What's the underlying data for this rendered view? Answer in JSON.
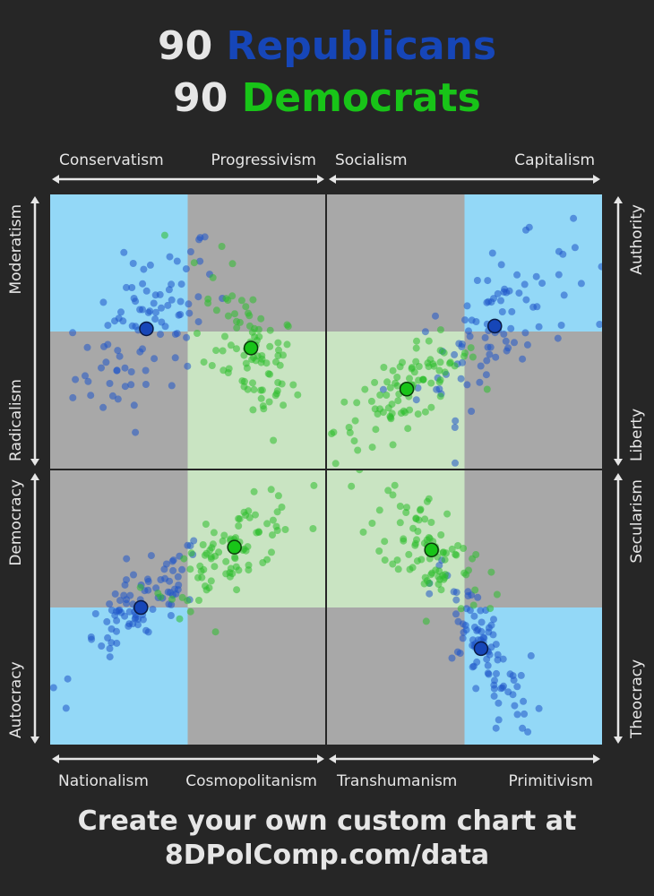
{
  "title": {
    "republicans_count": "90",
    "republicans_label": "Republicans",
    "democrats_count": "90",
    "democrats_label": "Democrats"
  },
  "footer": {
    "line1": "Create your own custom chart at",
    "line2": "8DPolComp.com/data"
  },
  "colors": {
    "background": "#262626",
    "republican": "#1646b8",
    "democrat": "#18c418",
    "republican_zone": "#93d8f7",
    "democrat_zone": "#c9e4c2",
    "neutral_zone": "#a8a8a8",
    "axis": "#e6e6e6"
  },
  "chart_data": [
    {
      "type": "scatter",
      "panel": "top-left",
      "x_axis": {
        "left": "Conservatism",
        "right": "Progressivism",
        "range": [
          0,
          100
        ]
      },
      "y_axis": {
        "top": "Moderatism",
        "bottom": "Radicalism",
        "range": [
          0,
          100
        ]
      },
      "republican_mean": [
        35,
        51
      ],
      "democrat_mean": [
        73,
        44
      ],
      "republican_zone": "top-left",
      "democrat_zone": "bottom-right"
    },
    {
      "type": "scatter",
      "panel": "top-right",
      "x_axis": {
        "left": "Socialism",
        "right": "Capitalism",
        "range": [
          0,
          100
        ]
      },
      "y_axis": {
        "top": "Authority",
        "bottom": "Liberty",
        "range": [
          0,
          100
        ]
      },
      "republican_mean": [
        61,
        52
      ],
      "democrat_mean": [
        29,
        29
      ],
      "republican_zone": "top-right",
      "democrat_zone": "bottom-left"
    },
    {
      "type": "scatter",
      "panel": "bottom-left",
      "x_axis": {
        "left": "Nationalism",
        "right": "Cosmopolitanism",
        "range": [
          0,
          100
        ]
      },
      "y_axis": {
        "top": "Democracy",
        "bottom": "Autocracy",
        "range": [
          0,
          100
        ]
      },
      "republican_mean": [
        33,
        50
      ],
      "democrat_mean": [
        67,
        72
      ],
      "republican_zone": "bottom-left",
      "democrat_zone": "top-right"
    },
    {
      "type": "scatter",
      "panel": "bottom-right",
      "x_axis": {
        "left": "Transhumanism",
        "right": "Primitivism",
        "range": [
          0,
          100
        ]
      },
      "y_axis": {
        "top": "Secularism",
        "bottom": "Theocracy",
        "range": [
          0,
          100
        ]
      },
      "republican_mean": [
        56,
        35
      ],
      "democrat_mean": [
        38,
        71
      ],
      "republican_zone": "bottom-right",
      "democrat_zone": "top-left"
    }
  ]
}
